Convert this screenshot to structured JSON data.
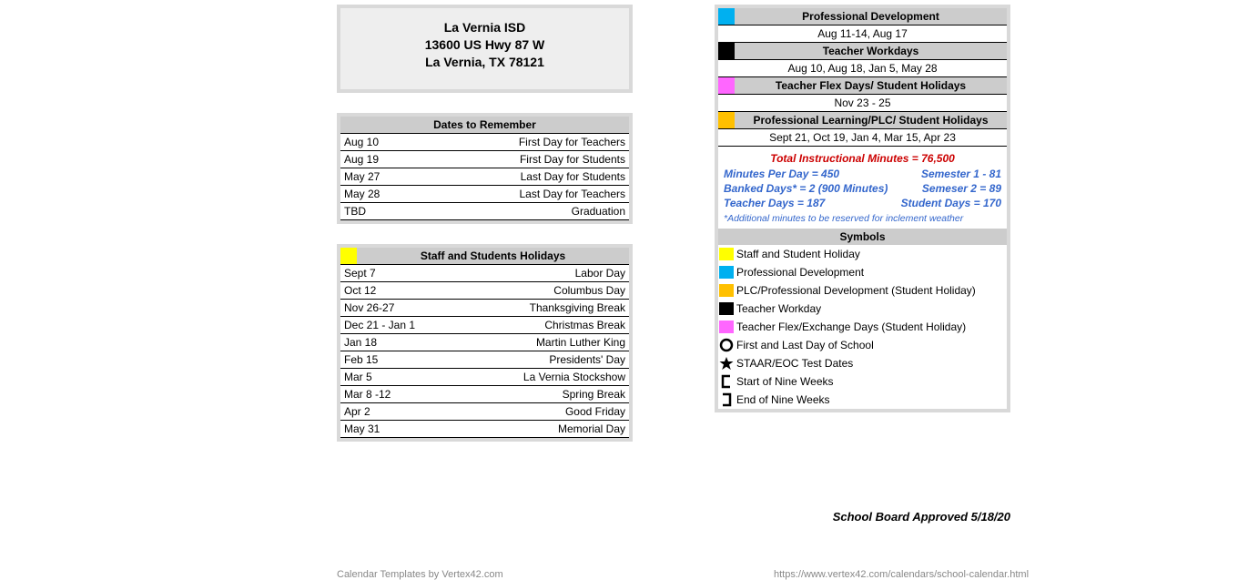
{
  "colors": {
    "panel_border": "#d9d9d9",
    "header_bg": "#eeeeee",
    "section_bg": "#cccccc",
    "yellow": "#ffff00",
    "cyan": "#00b0f0",
    "black": "#000000",
    "magenta": "#ff66ff",
    "orange": "#ffc000",
    "red_text": "#cc0000",
    "blue_text": "#3366cc"
  },
  "header": {
    "line1": "La Vernia ISD",
    "line2": "13600 US Hwy 87 W",
    "line3": "La Vernia, TX 78121"
  },
  "dates_section": {
    "title": "Dates to Remember",
    "rows": [
      {
        "date": "Aug 10",
        "label": "First Day for Teachers"
      },
      {
        "date": "Aug 19",
        "label": "First Day for Students"
      },
      {
        "date": "May 27",
        "label": "Last Day for Students"
      },
      {
        "date": "May 28",
        "label": "Last Day for Teachers"
      },
      {
        "date": "TBD",
        "label": "Graduation"
      }
    ]
  },
  "holidays_section": {
    "title": "Staff and Students Holidays",
    "swatch_color": "#ffff00",
    "rows": [
      {
        "date": "Sept 7",
        "label": "Labor Day"
      },
      {
        "date": "Oct 12",
        "label": "Columbus Day"
      },
      {
        "date": "Nov 26-27",
        "label": "Thanksgiving Break"
      },
      {
        "date": "Dec 21 - Jan 1",
        "label": "Christmas Break"
      },
      {
        "date": "Jan 18",
        "label": "Martin Luther King"
      },
      {
        "date": "Feb 15",
        "label": "Presidents' Day"
      },
      {
        "date": "Mar 5",
        "label": "La Vernia Stockshow"
      },
      {
        "date": "Mar 8 -12",
        "label": "Spring Break"
      },
      {
        "date": "Apr 2",
        "label": "Good Friday"
      },
      {
        "date": "May 31",
        "label": "Memorial Day"
      }
    ]
  },
  "right_sections": [
    {
      "color": "#00b0f0",
      "title": "Professional Development",
      "dates": "Aug 11-14, Aug 17"
    },
    {
      "color": "#000000",
      "title": "Teacher Workdays",
      "dates": "Aug 10,  Aug 18, Jan 5, May 28"
    },
    {
      "color": "#ff66ff",
      "title": "Teacher Flex Days/ Student Holidays",
      "dates": "Nov 23 - 25"
    },
    {
      "color": "#ffc000",
      "title": "Professional Learning/PLC/ Student Holidays",
      "dates": "Sept 21, Oct 19, Jan 4, Mar 15, Apr 23"
    }
  ],
  "totals": {
    "total_line": "Total Instructional Minutes = 76,500",
    "lines": [
      {
        "left": "Minutes Per Day = 450",
        "right": "Semester 1 - 81"
      },
      {
        "left": "Banked Days* = 2 (900 Minutes)",
        "right": "Semeser 2 = 89"
      },
      {
        "left": "Teacher Days = 187",
        "right": "Student Days = 170"
      }
    ],
    "note": "*Additional minutes to be reserved for inclement weather"
  },
  "symbols": {
    "title": "Symbols",
    "items": [
      {
        "type": "swatch",
        "color": "#ffff00",
        "label": "Staff and Student Holiday"
      },
      {
        "type": "swatch",
        "color": "#00b0f0",
        "label": "Professional Development"
      },
      {
        "type": "swatch",
        "color": "#ffc000",
        "label": "PLC/Professional Development (Student Holiday)"
      },
      {
        "type": "swatch",
        "color": "#000000",
        "label": "Teacher Workday"
      },
      {
        "type": "swatch",
        "color": "#ff66ff",
        "label": "Teacher Flex/Exchange Days (Student Holiday)"
      },
      {
        "type": "circle",
        "label": "First and Last Day of School"
      },
      {
        "type": "star",
        "label": "STAAR/EOC Test Dates"
      },
      {
        "type": "bracket-open",
        "label": "Start of Nine Weeks"
      },
      {
        "type": "bracket-close",
        "label": "End of Nine Weeks"
      }
    ]
  },
  "approved": "School Board Approved 5/18/20",
  "footer_left": "Calendar Templates by Vertex42.com",
  "footer_right": "https://www.vertex42.com/calendars/school-calendar.html"
}
